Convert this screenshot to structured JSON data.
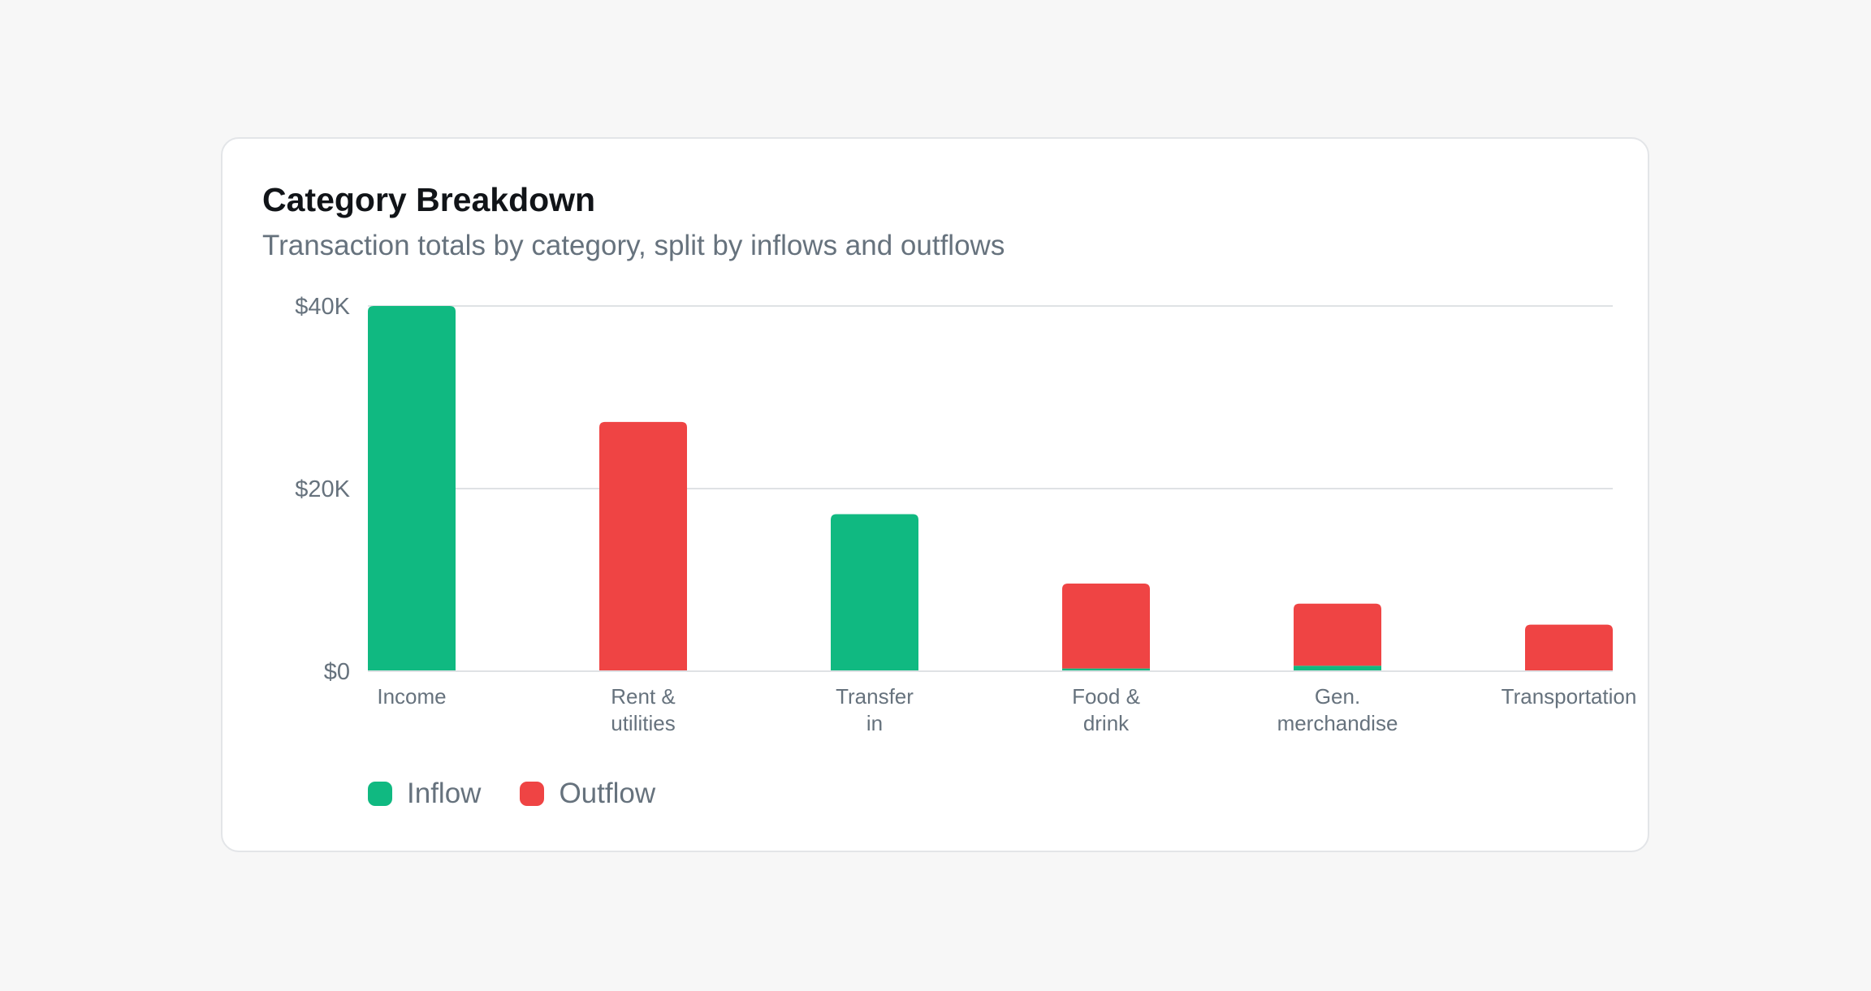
{
  "card": {
    "title": "Category Breakdown",
    "subtitle": "Transaction totals by category, split by inflows and outflows"
  },
  "colors": {
    "inflow": "#10b981",
    "outflow": "#ef4444",
    "grid": "#dfe2e5",
    "text": "#66727d"
  },
  "chart_data": {
    "type": "bar",
    "stacked": true,
    "title": "",
    "xlabel": "",
    "ylabel": "",
    "ylim": [
      0,
      40000
    ],
    "y_ticks": [
      {
        "value": 0,
        "label": "$0"
      },
      {
        "value": 20000,
        "label": "$20K"
      },
      {
        "value": 40000,
        "label": "$40K"
      }
    ],
    "grid": true,
    "legend_position": "bottom-left",
    "categories": [
      [
        "Income"
      ],
      [
        "Rent &",
        "utilities"
      ],
      [
        "Transfer",
        "in"
      ],
      [
        "Food &",
        "drink"
      ],
      [
        "Gen.",
        "merchandise"
      ],
      [
        "Transportation"
      ]
    ],
    "series": [
      {
        "name": "Inflow",
        "color": "#10b981",
        "values": [
          40000,
          0,
          17200,
          300,
          600,
          0
        ]
      },
      {
        "name": "Outflow",
        "color": "#ef4444",
        "values": [
          0,
          27300,
          0,
          9300,
          6800,
          5100
        ]
      }
    ]
  },
  "legend": {
    "items": [
      {
        "label": "Inflow",
        "color": "#10b981"
      },
      {
        "label": "Outflow",
        "color": "#ef4444"
      }
    ]
  }
}
